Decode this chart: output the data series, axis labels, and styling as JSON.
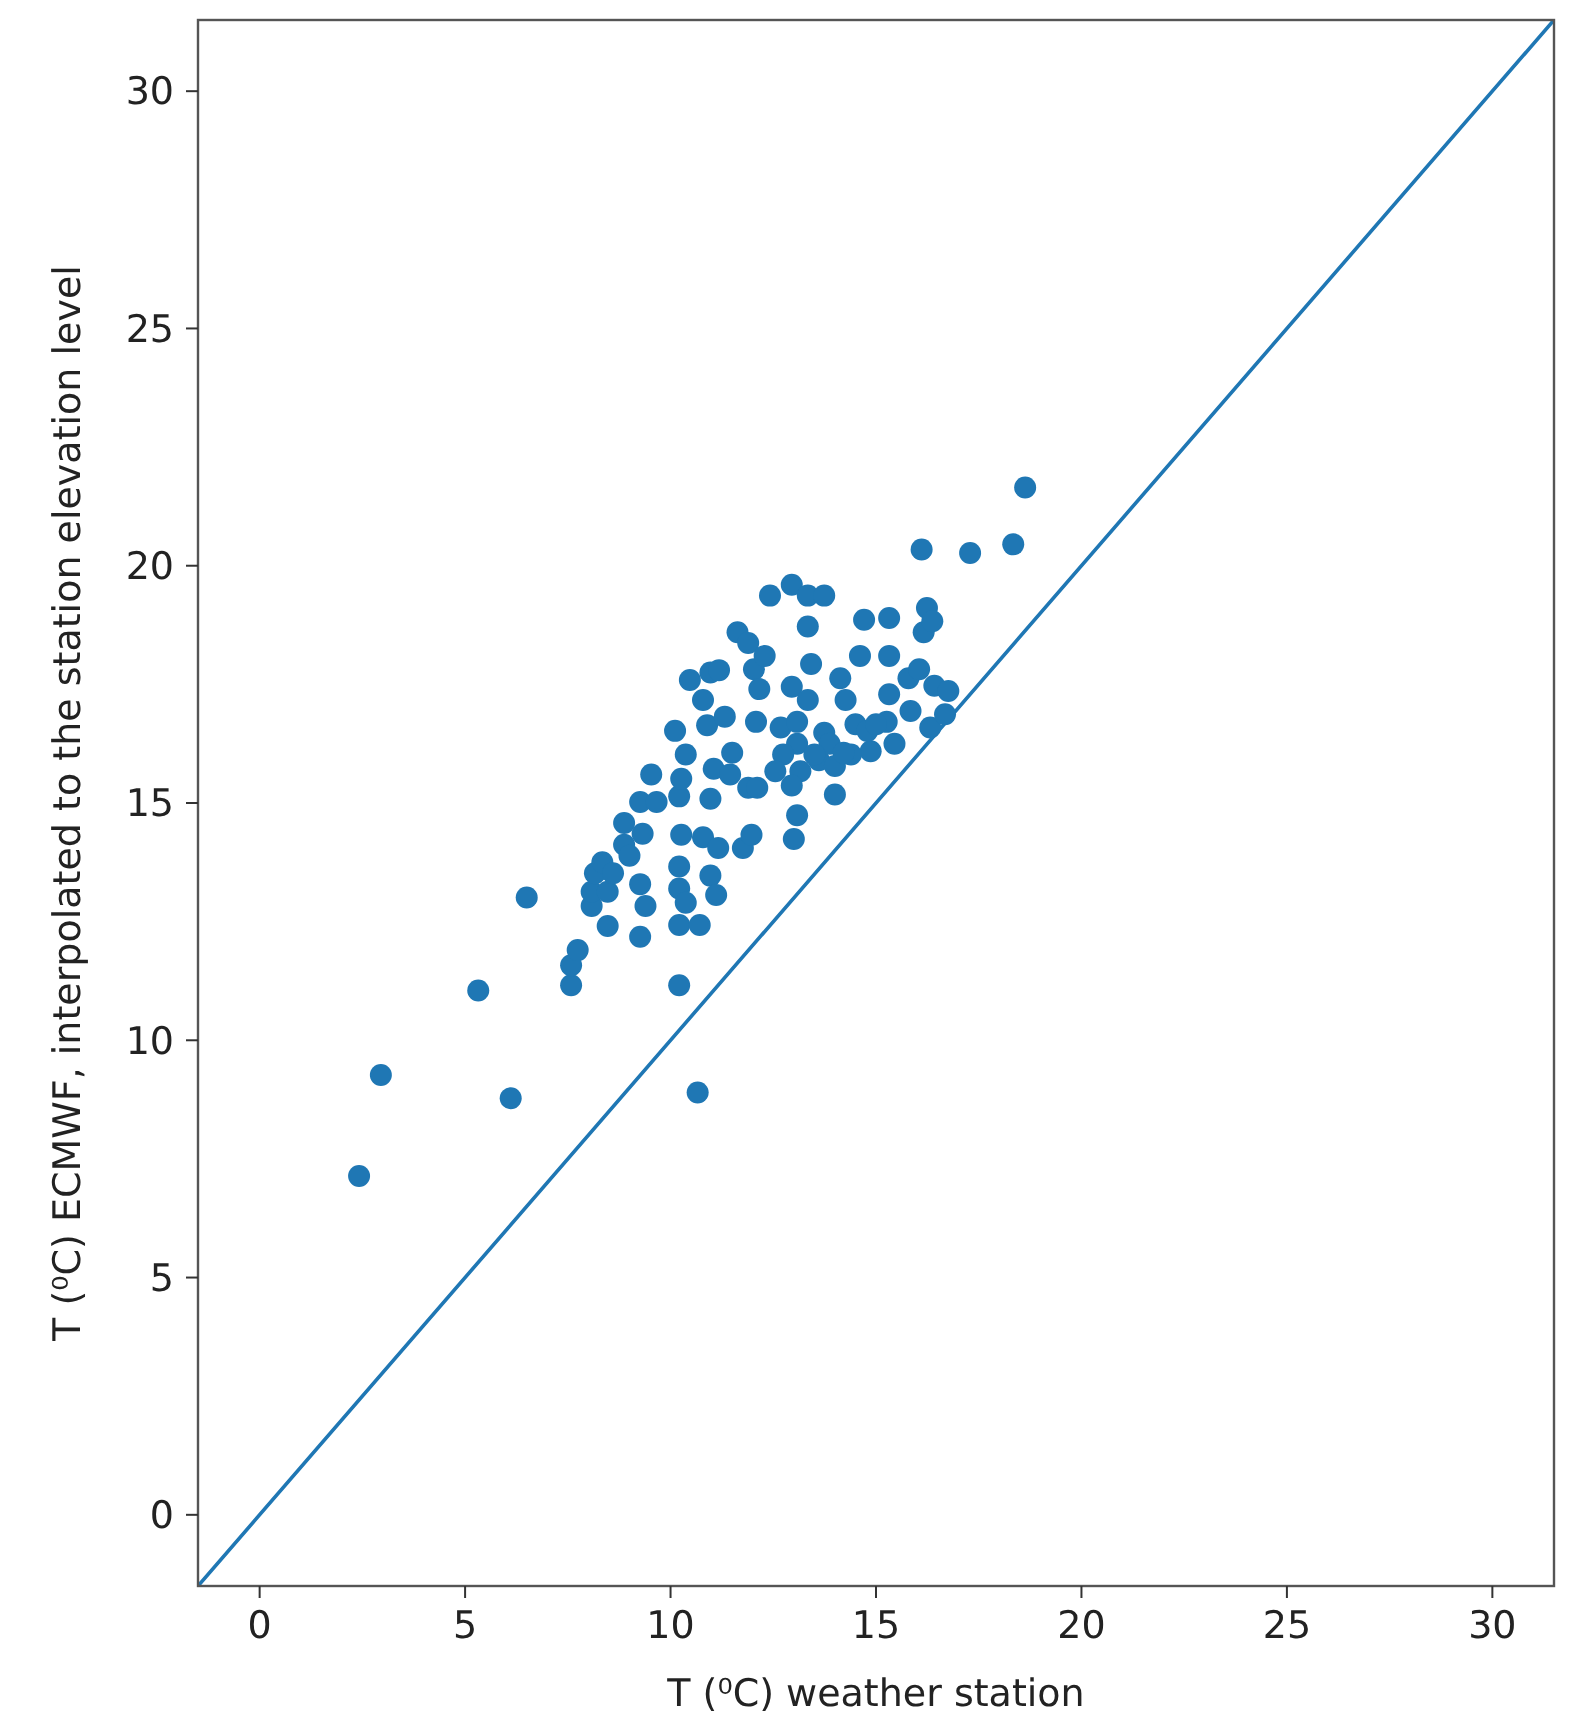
{
  "chart_data": {
    "type": "scatter",
    "xlabel": "T (⁰C) weather station",
    "ylabel": "T (⁰C) ECMWF, interpolated to the station elevation level",
    "xlim": [
      -1.5,
      31.5
    ],
    "ylim": [
      -1.5,
      31.5
    ],
    "xticks": [
      0,
      5,
      10,
      15,
      20,
      25,
      30
    ],
    "yticks": [
      0,
      5,
      10,
      15,
      20,
      25,
      30
    ],
    "grid": false,
    "series": [
      {
        "type": "line",
        "color": "#1f77b4",
        "marker": "none",
        "line_style": "solid",
        "x": [
          -1.5,
          31.5
        ],
        "values": [
          -1.5,
          31.5
        ]
      },
      {
        "color": "#1f77b4",
        "marker": "circle",
        "x": [
          2.42,
          2.95,
          5.32,
          6.11,
          6.5,
          10.66,
          10.21,
          7.58,
          7.58,
          7.74,
          8.47,
          9.26,
          8.08,
          8.08,
          8.16,
          8.34,
          8.47,
          8.6,
          8.87,
          9.0,
          8.87,
          9.32,
          9.26,
          9.39,
          9.53,
          9.26,
          9.66,
          10.21,
          10.71,
          10.21,
          10.37,
          10.21,
          10.26,
          10.21,
          10.26,
          10.11,
          10.37,
          10.47,
          10.79,
          10.97,
          11.18,
          10.89,
          11.05,
          10.97,
          10.79,
          10.97,
          11.16,
          11.11,
          11.32,
          11.5,
          11.45,
          11.89,
          11.76,
          11.97,
          11.63,
          11.89,
          12.03,
          12.16,
          12.29,
          12.08,
          12.42,
          12.95,
          13.34,
          13.74,
          13.34,
          13.42,
          12.95,
          13.34,
          12.68,
          13.08,
          13.08,
          12.74,
          13.16,
          12.95,
          12.55,
          12.11,
          13.08,
          13.0,
          13.61,
          13.74,
          14.0,
          13.87,
          14.13,
          14.26,
          14.61,
          14.71,
          14.5,
          14.87,
          14.79,
          14.39,
          15.32,
          15.32,
          15.32,
          15.26,
          15.45,
          15.79,
          15.84,
          16.11,
          16.24,
          16.16,
          16.37,
          16.05,
          16.42,
          16.32,
          16.68,
          16.76,
          17.29,
          18.34,
          18.63,
          14.0,
          13.5,
          14.21,
          15.0
        ],
        "values": [
          7.14,
          9.27,
          11.05,
          8.78,
          13.01,
          8.9,
          11.16,
          11.16,
          11.58,
          11.9,
          12.41,
          12.18,
          12.83,
          13.13,
          13.52,
          13.75,
          13.13,
          13.52,
          14.12,
          13.89,
          14.58,
          14.35,
          13.29,
          12.83,
          15.6,
          15.02,
          15.02,
          12.43,
          12.43,
          13.2,
          12.9,
          13.66,
          14.33,
          15.14,
          15.51,
          16.52,
          16.02,
          17.59,
          17.17,
          17.75,
          17.8,
          16.64,
          15.72,
          15.09,
          14.28,
          13.47,
          14.05,
          13.06,
          16.82,
          16.06,
          15.6,
          15.32,
          14.05,
          14.33,
          18.6,
          18.37,
          17.82,
          17.4,
          18.1,
          16.71,
          19.37,
          19.6,
          19.37,
          19.37,
          18.72,
          17.93,
          17.45,
          17.17,
          16.59,
          16.71,
          16.25,
          16.02,
          15.67,
          15.37,
          15.67,
          15.32,
          14.74,
          14.24,
          15.9,
          16.48,
          15.18,
          16.25,
          17.63,
          17.17,
          18.1,
          18.86,
          16.66,
          16.09,
          16.52,
          16.02,
          18.9,
          18.1,
          17.29,
          16.71,
          16.25,
          17.63,
          16.94,
          20.34,
          19.11,
          18.6,
          18.83,
          17.82,
          17.47,
          16.59,
          16.87,
          17.36,
          20.27,
          20.45,
          21.65,
          15.78,
          16.02,
          16.06,
          16.66
        ]
      }
    ]
  }
}
